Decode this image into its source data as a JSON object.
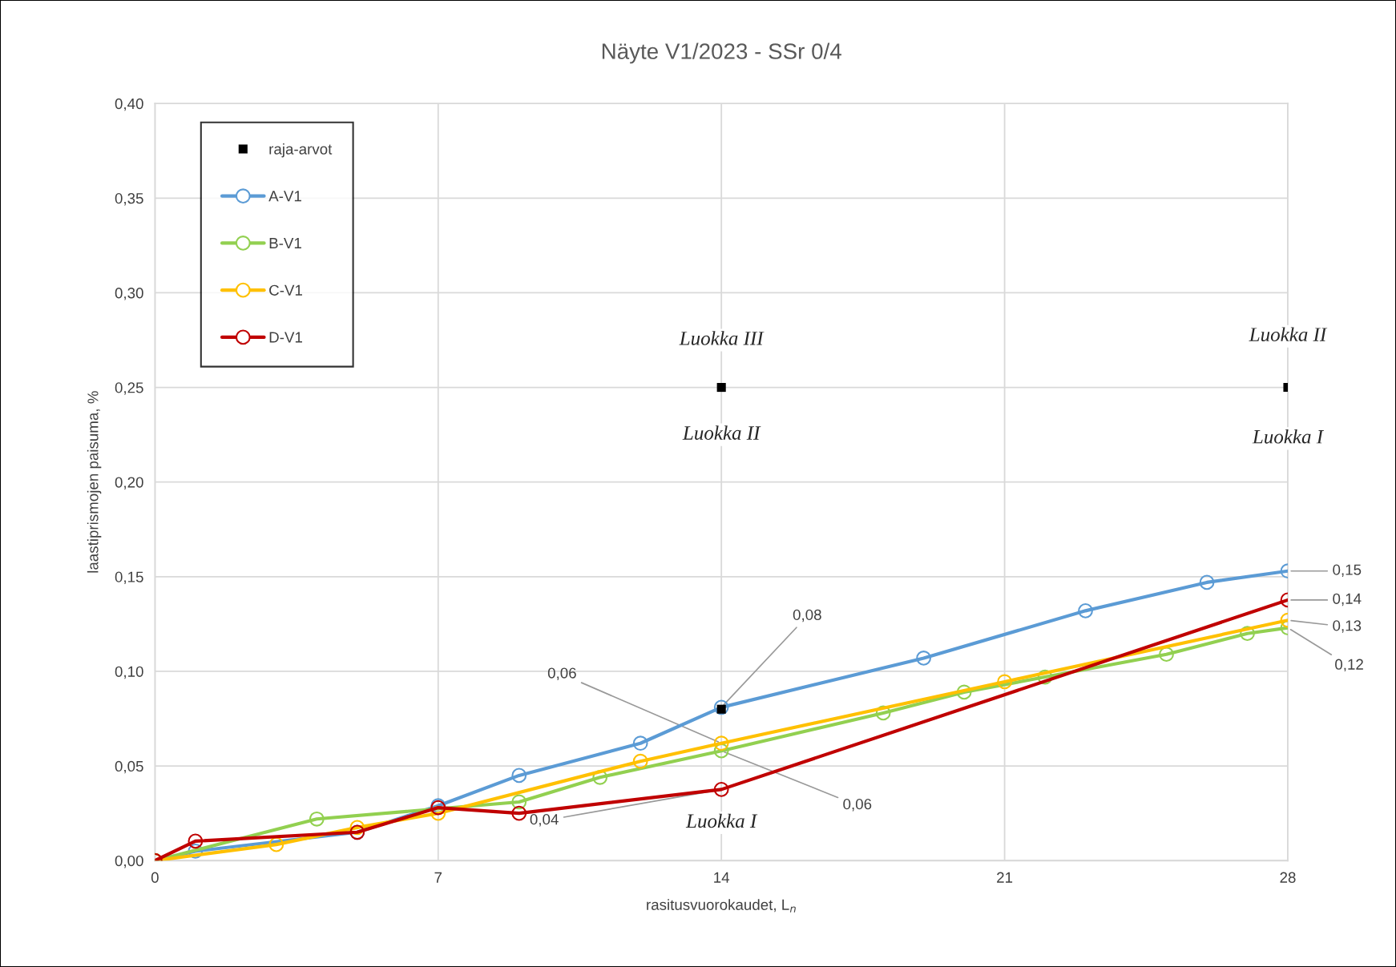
{
  "chart_data": {
    "type": "line",
    "title": "Näyte V1/2023 - SSr 0/4",
    "xlabel": "rasitusvuorokaudet, L$_{n}$",
    "ylabel": "laastiprismojen paisuma, %",
    "xlim": [
      0,
      28
    ],
    "xticks": [
      0,
      7,
      14,
      21,
      28
    ],
    "ylim": [
      0,
      0.4
    ],
    "yticks": [
      {
        "value": 0,
        "label": "0,00"
      },
      {
        "value": 0.05,
        "label": "0,05"
      },
      {
        "value": 0.1,
        "label": "0,10"
      },
      {
        "value": 0.15,
        "label": "0,15"
      },
      {
        "value": 0.2,
        "label": "0,20"
      },
      {
        "value": 0.25,
        "label": "0,25"
      },
      {
        "value": 0.3,
        "label": "0,30"
      },
      {
        "value": 0.35,
        "label": "0,35"
      },
      {
        "value": 0.4,
        "label": "0,40"
      }
    ],
    "grid": true,
    "legend": "top left",
    "marker": "circle",
    "line_style": "solid",
    "series": [
      {
        "name": "raja-arvot",
        "type": "scatter",
        "marker": "square",
        "color": "#000000",
        "x": [
          14,
          28,
          14
        ],
        "values": [
          0.25,
          0.25,
          0.08
        ]
      },
      {
        "name": "A-V1",
        "color": "#5b9bd5",
        "x": [
          0,
          1,
          5,
          7,
          9,
          12,
          14,
          19,
          23,
          26,
          28
        ],
        "values": [
          0,
          0.005,
          0.015,
          0.029,
          0.045,
          0.062,
          0.081,
          0.107,
          0.132,
          0.147,
          0.153
        ],
        "value_labels": [
          null,
          null,
          null,
          null,
          null,
          null,
          "0,08",
          null,
          null,
          null,
          "0,15"
        ]
      },
      {
        "name": "B-V1",
        "color": "#92d050",
        "x": [
          0,
          4,
          9,
          11,
          14,
          18,
          20,
          22,
          25,
          27,
          28
        ],
        "values": [
          0,
          0.022,
          0.031,
          0.044,
          0.058,
          0.078,
          0.089,
          0.097,
          0.109,
          0.12,
          0.123
        ],
        "value_labels": [
          null,
          null,
          null,
          null,
          "0,06",
          null,
          null,
          null,
          null,
          null,
          "0,12"
        ]
      },
      {
        "name": "C-V1",
        "color": "#ffc000",
        "x": [
          0,
          3,
          5,
          7,
          12,
          14,
          21,
          28
        ],
        "values": [
          0,
          0.0085,
          0.0175,
          0.025,
          0.0525,
          0.062,
          0.0945,
          0.127
        ],
        "value_labels": [
          null,
          null,
          null,
          null,
          null,
          "0,06",
          null,
          "0,13"
        ]
      },
      {
        "name": "D-V1",
        "color": "#c00000",
        "x": [
          0,
          1,
          5,
          7,
          9,
          14,
          28
        ],
        "values": [
          0,
          0.0103,
          0.015,
          0.028,
          0.025,
          0.0376,
          0.1377
        ],
        "value_labels": [
          null,
          null,
          null,
          null,
          null,
          "0,04",
          "0,14"
        ]
      }
    ],
    "annotations": [
      "Luokka III",
      "Luokka II",
      "Luokka II",
      "Luokka I",
      "Luokka I"
    ]
  }
}
